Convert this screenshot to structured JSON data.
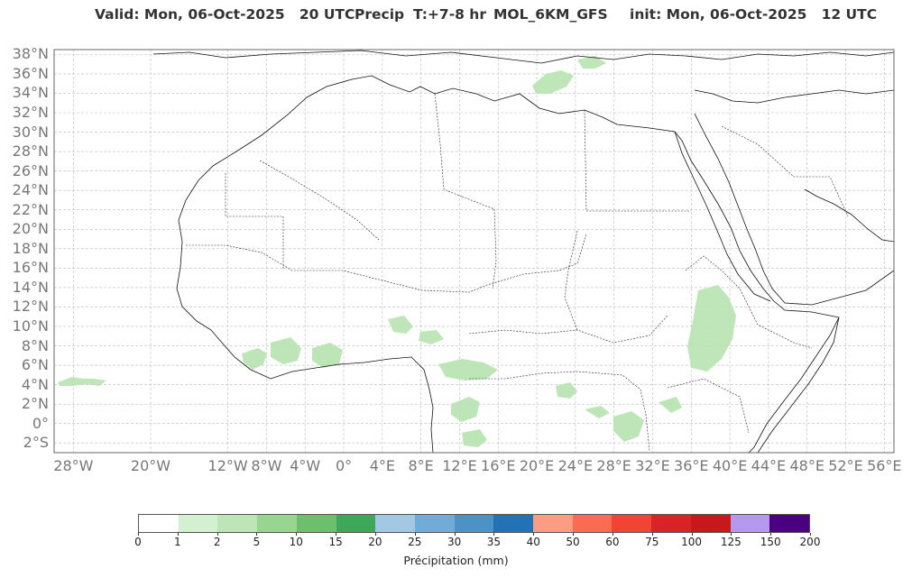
{
  "header": {
    "valid": "Valid: Mon, 06-Oct-2025   20 UTC",
    "field": "Precip",
    "lead": "T:+7-8 hr",
    "model": "MOL_6KM_GFS",
    "init": "init: Mon, 06-Oct-2025   12 UTC"
  },
  "map": {
    "lat_labels": [
      "38°N",
      "36°N",
      "34°N",
      "32°N",
      "30°N",
      "28°N",
      "26°N",
      "24°N",
      "22°N",
      "20°N",
      "18°N",
      "16°N",
      "14°N",
      "12°N",
      "10°N",
      "8°N",
      "6°N",
      "4°N",
      "2°N",
      "0°",
      "2°S"
    ],
    "lon_labels": [
      "28°W",
      "20°W",
      "12°W",
      "8°W",
      "4°W",
      "0°",
      "4°E",
      "8°E",
      "12°E",
      "16°E",
      "20°E",
      "24°E",
      "28°E",
      "32°E",
      "36°E",
      "40°E",
      "44°E",
      "48°E",
      "52°E",
      "56°E"
    ],
    "extent": {
      "lon_min": -30,
      "lon_max": 57,
      "lat_min": -3,
      "lat_max": 38.5
    },
    "grid": true
  },
  "colorbar": {
    "label": "Précipitation (mm)",
    "ticks": [
      "0",
      "1",
      "2",
      "5",
      "10",
      "15",
      "20",
      "25",
      "30",
      "35",
      "40",
      "50",
      "60",
      "75",
      "100",
      "125",
      "150",
      "200"
    ],
    "colors": [
      "#ffffff",
      "#d3f0d0",
      "#bde5b6",
      "#97d591",
      "#6cc06d",
      "#3ea85a",
      "#a3c8e4",
      "#71acd8",
      "#4b93c7",
      "#2272b6",
      "#fc9c82",
      "#fa6c51",
      "#f14433",
      "#d82426",
      "#c7181b",
      "#b598f0",
      "#4b0081"
    ]
  },
  "precip_regions": [
    {
      "name": "sierra-leone-liberia",
      "lon": -10.5,
      "lat": 6.5
    },
    {
      "name": "ivory-coast",
      "lon": -5,
      "lat": 6.5
    },
    {
      "name": "ghana",
      "lon": -1.5,
      "lat": 6.5
    },
    {
      "name": "nigeria",
      "lon": 7.5,
      "lat": 10
    },
    {
      "name": "cameroon",
      "lon": 12.5,
      "lat": 4.5
    },
    {
      "name": "gabon-congo",
      "lon": 13,
      "lat": 1
    },
    {
      "name": "drc",
      "lon": 24,
      "lat": 3
    },
    {
      "name": "ethiopia",
      "lon": 37,
      "lat": 8
    },
    {
      "name": "lake-victoria",
      "lon": 32,
      "lat": -1
    },
    {
      "name": "greece-turkey",
      "lon": 27,
      "lat": 37
    },
    {
      "name": "atlantic",
      "lon": -28,
      "lat": 4.5
    }
  ]
}
